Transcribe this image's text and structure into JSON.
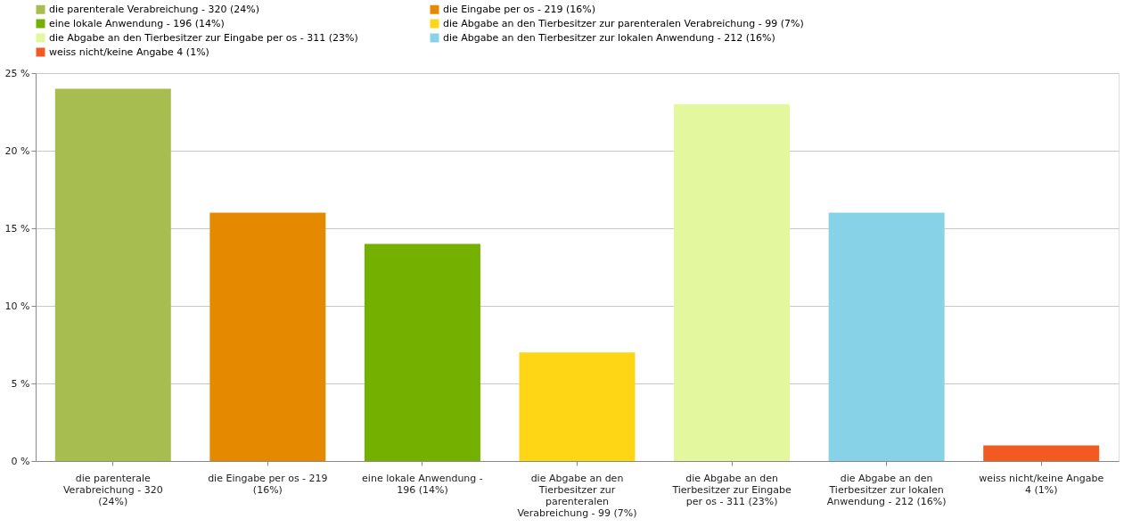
{
  "chart_data": {
    "type": "bar",
    "categories": [
      "die parenterale Verabreichung - 320 (24%)",
      "die Eingabe per os - 219 (16%)",
      "eine lokale Anwendung - 196 (14%)",
      "die Abgabe an den Tierbesitzer zur parenteralen Verabreichung - 99 (7%)",
      "die Abgabe an den Tierbesitzer zur Eingabe per os - 311 (23%)",
      "die Abgabe an den Tierbesitzer zur lokalen Anwendung - 212 (16%)",
      "weiss nicht/keine Angabe 4 (1%)"
    ],
    "series": [
      {
        "name": "die parenterale Verabreichung - 320 (24%)",
        "color": "#a8bd50",
        "values": [
          24,
          null,
          null,
          null,
          null,
          null,
          null
        ]
      },
      {
        "name": "die Eingabe per os - 219 (16%)",
        "color": "#e58a00",
        "values": [
          null,
          16,
          null,
          null,
          null,
          null,
          null
        ]
      },
      {
        "name": "eine lokale Anwendung - 196 (14%)",
        "color": "#73b000",
        "values": [
          null,
          null,
          14,
          null,
          null,
          null,
          null
        ]
      },
      {
        "name": "die Abgabe an den Tierbesitzer zur parenteralen Verabreichung - 99 (7%)",
        "color": "#fed615",
        "values": [
          null,
          null,
          null,
          7,
          null,
          null,
          null
        ]
      },
      {
        "name": "die Abgabe an den Tierbesitzer zur Eingabe per os - 311 (23%)",
        "color": "#e3f79e",
        "values": [
          null,
          null,
          null,
          null,
          23,
          null,
          null
        ]
      },
      {
        "name": "die Abgabe an den Tierbesitzer zur lokalen Anwendung - 212 (16%)",
        "color": "#87d2e6",
        "values": [
          null,
          null,
          null,
          null,
          null,
          16,
          null
        ]
      },
      {
        "name": "weiss nicht/keine Angabe 4 (1%)",
        "color": "#f25a22",
        "values": [
          null,
          null,
          null,
          null,
          null,
          null,
          1
        ]
      }
    ],
    "ylim": [
      0,
      25
    ],
    "yticks": [
      {
        "value": 0,
        "label": "0 %"
      },
      {
        "value": 5,
        "label": "5 %"
      },
      {
        "value": 10,
        "label": "10 %"
      },
      {
        "value": 15,
        "label": "15 %"
      },
      {
        "value": 20,
        "label": "20 %"
      },
      {
        "value": 25,
        "label": "25 %"
      }
    ],
    "grid": "y",
    "legend": "top"
  }
}
